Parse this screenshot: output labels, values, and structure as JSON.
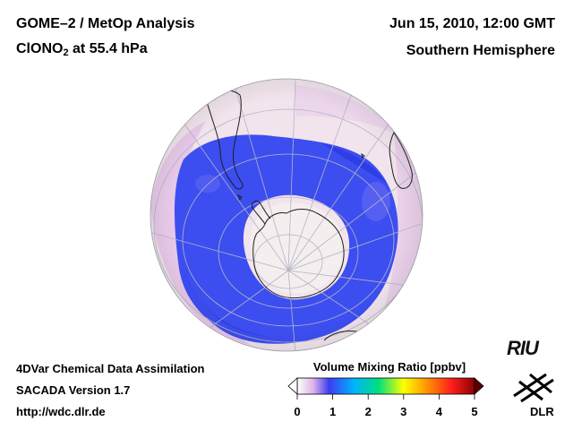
{
  "header": {
    "title_line1": "GOME–2 / MetOp Analysis",
    "species": "ClONO",
    "species_sub": "2",
    "level_text": " at 55.4 hPa",
    "datetime": "Jun 15, 2010, 12:00 GMT",
    "region": "Southern Hemisphere"
  },
  "footer": {
    "line1": "4DVar Chemical Data Assimilation",
    "line2": "SACADA Version 1.7",
    "line3": "http://wdc.dlr.de"
  },
  "colorbar": {
    "title": "Volume Mixing Ratio [ppbv]",
    "ticks": [
      "0",
      "1",
      "2",
      "3",
      "4",
      "5"
    ],
    "range": [
      0,
      5
    ],
    "colors": [
      "#ffffff",
      "#dcb4e6",
      "#3c3cf0",
      "#00b4ff",
      "#00e07a",
      "#ffff00",
      "#ff8c00",
      "#ff1e1e",
      "#8b0000"
    ]
  },
  "logos": {
    "riu": "RIU",
    "dlr": "DLR"
  },
  "map": {
    "projection": "orthographic",
    "hemisphere": "south",
    "colors": {
      "background": "#f2e6ee",
      "low": "#e6c4e6",
      "band": "#3c50f0",
      "band_dark": "#2838e6",
      "vortex_core": "#f5efef",
      "coast": "#222222",
      "grid": "#b8b8c8"
    }
  }
}
